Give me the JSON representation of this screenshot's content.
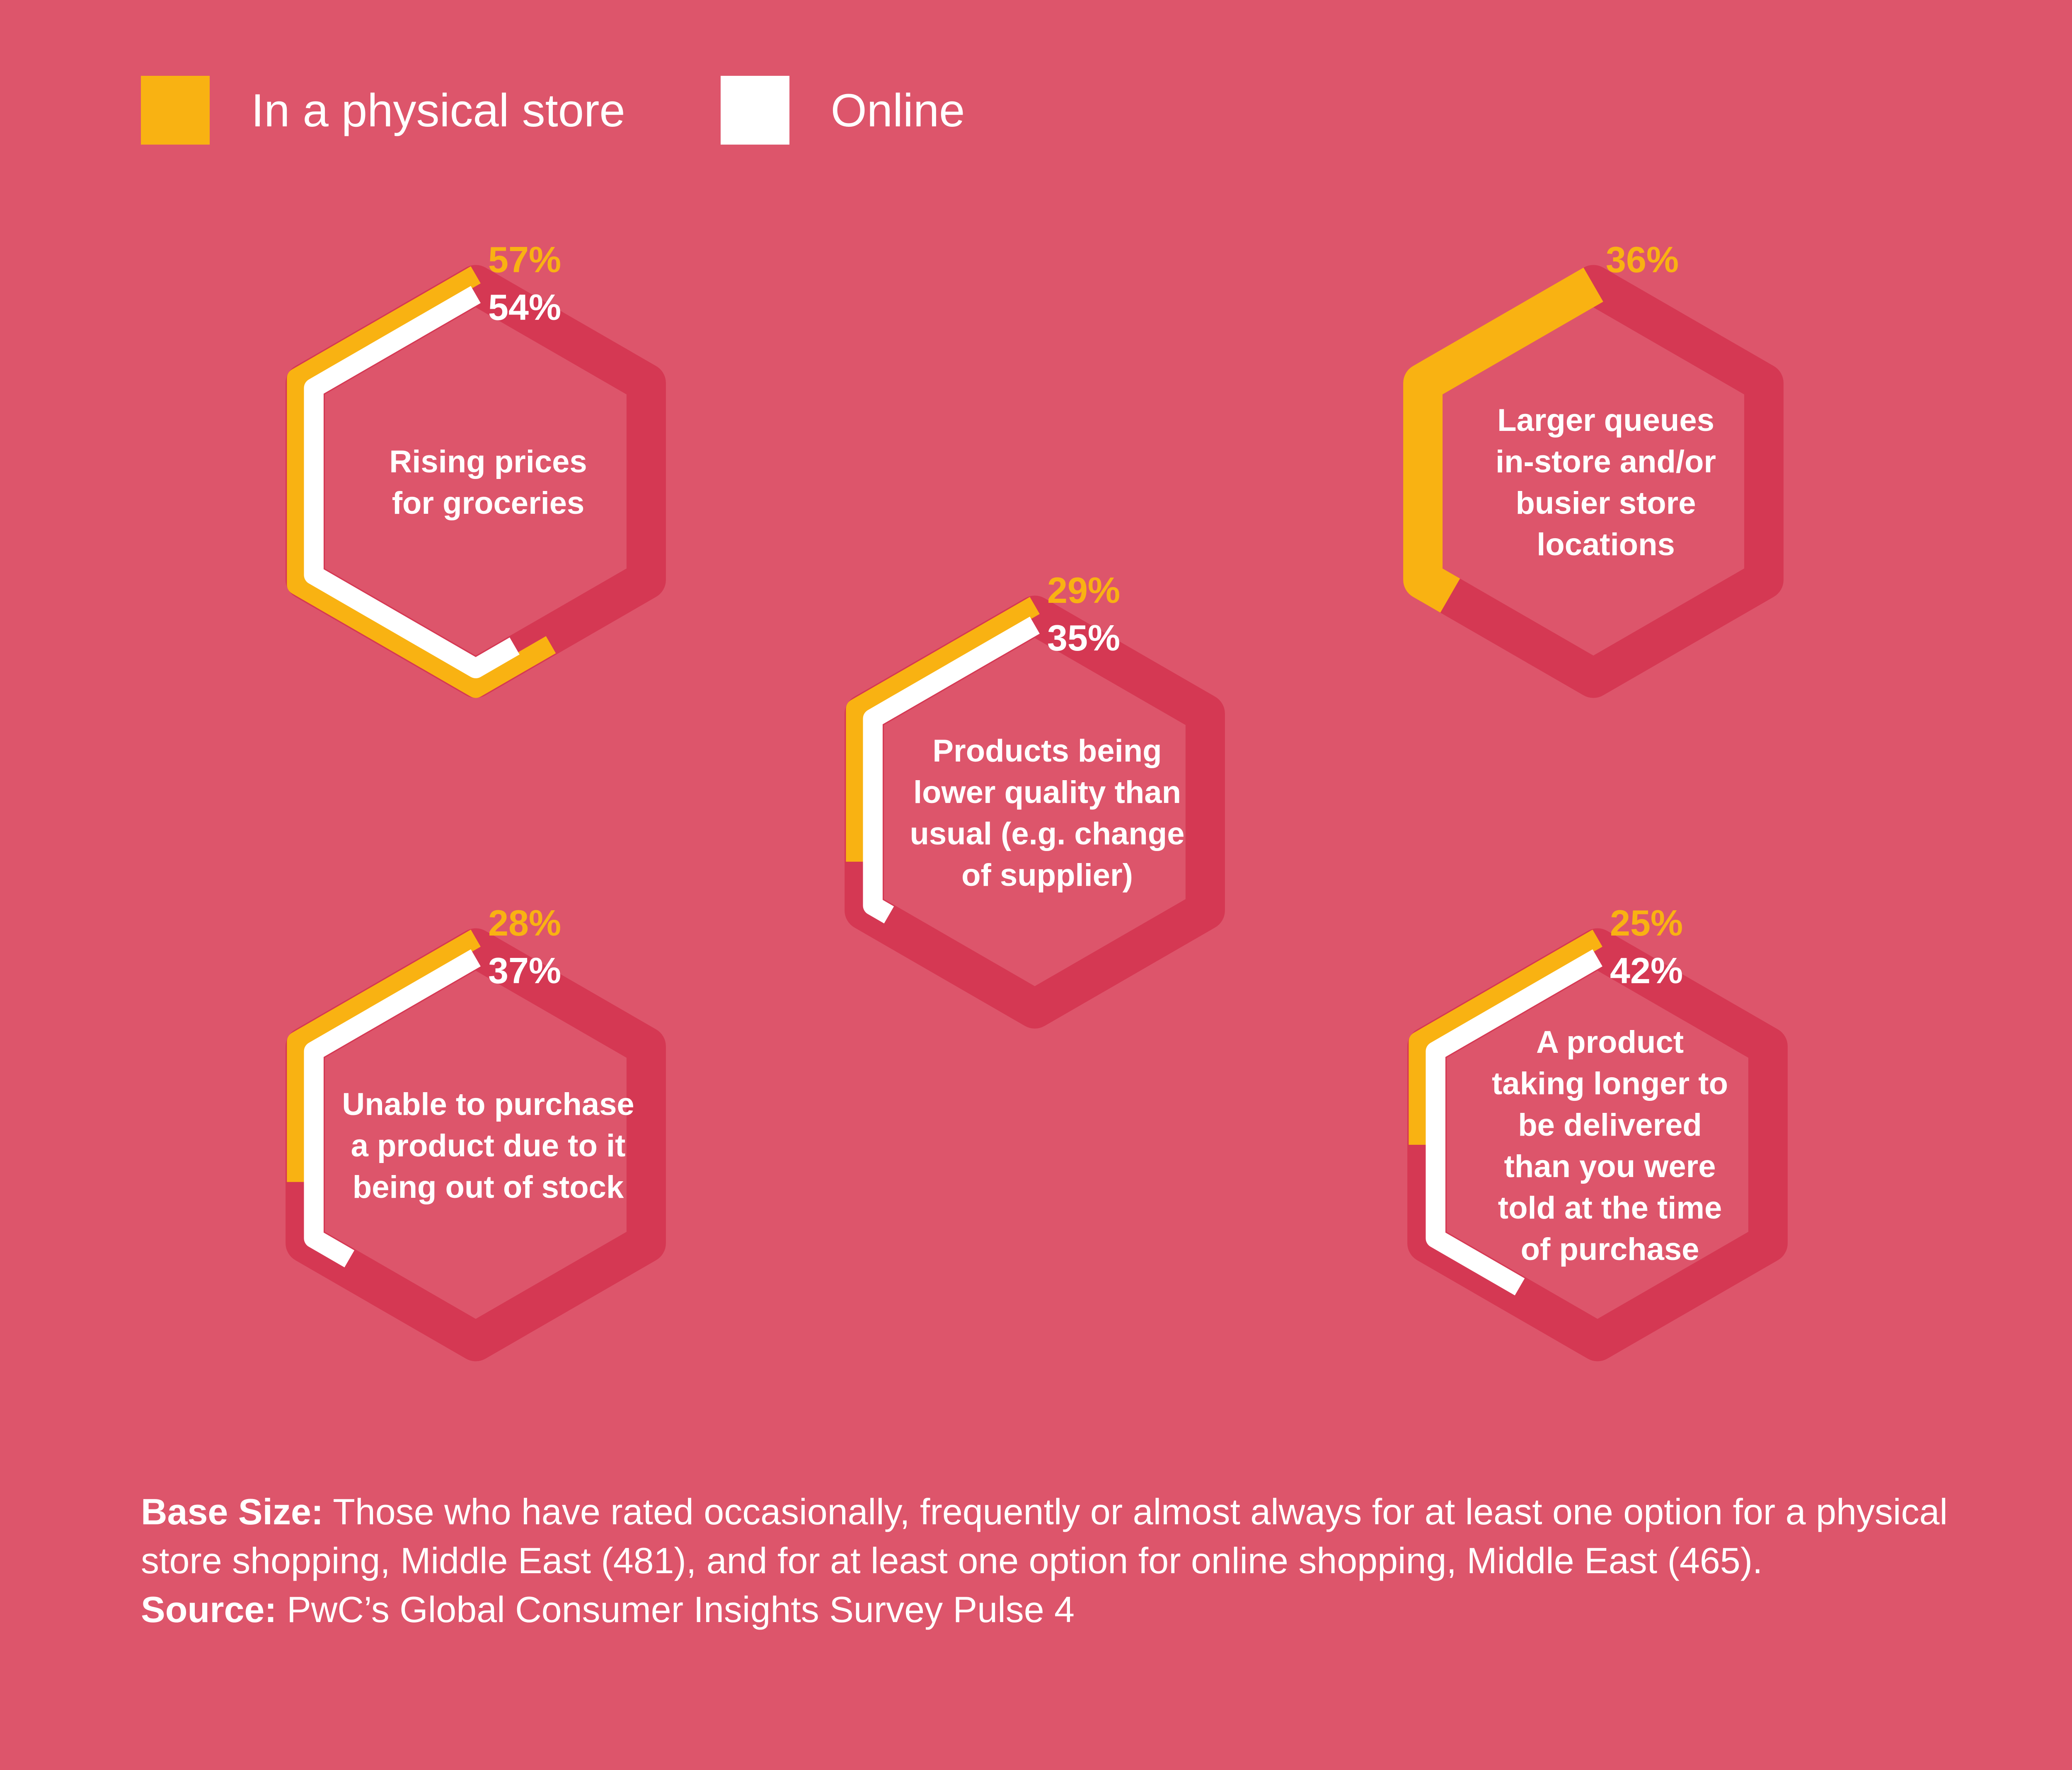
{
  "legend": {
    "store_label": "In a physical store",
    "online_label": "Online"
  },
  "colors": {
    "background": "#DD556B",
    "track": "#D53853",
    "store": "#F9B212",
    "online": "#FFFFFF",
    "text": "#FFFFFF"
  },
  "chart_data": {
    "type": "hexagonal-ring",
    "series": [
      {
        "name": "In a physical store",
        "color": "#F9B212"
      },
      {
        "name": "Online",
        "color": "#FFFFFF"
      }
    ],
    "items": [
      {
        "label_lines": [
          "Rising prices",
          "for groceries"
        ],
        "store": 57,
        "online": 54,
        "store_text": "57%",
        "online_text": "54%"
      },
      {
        "label_lines": [
          "Products being",
          "lower quality than",
          "usual (e.g. change",
          "of supplier)"
        ],
        "store": 29,
        "online": 35,
        "store_text": "29%",
        "online_text": "35%"
      },
      {
        "label_lines": [
          "Larger queues",
          "in-store and/or",
          "busier store",
          "locations"
        ],
        "store": 36,
        "online": null,
        "store_text": "36%",
        "online_text": null
      },
      {
        "label_lines": [
          "Unable to purchase",
          "a product due to it",
          "being out of stock"
        ],
        "store": 28,
        "online": 37,
        "store_text": "28%",
        "online_text": "37%"
      },
      {
        "label_lines": [
          "A product",
          "taking longer to",
          "be delivered",
          "than you were",
          "told at the time",
          "of purchase"
        ],
        "store": 25,
        "online": 42,
        "store_text": "25%",
        "online_text": "42%"
      }
    ]
  },
  "footnote": {
    "base_size_label": "Base Size:",
    "base_size_text": " Those who have rated occasionally, frequently or almost always for at least one option for a physical store shopping, Middle East (481), and for at least one option for online shopping, Middle East (465).",
    "source_label": "Source:",
    "source_text": " PwC’s Global Consumer Insights Survey Pulse 4"
  }
}
